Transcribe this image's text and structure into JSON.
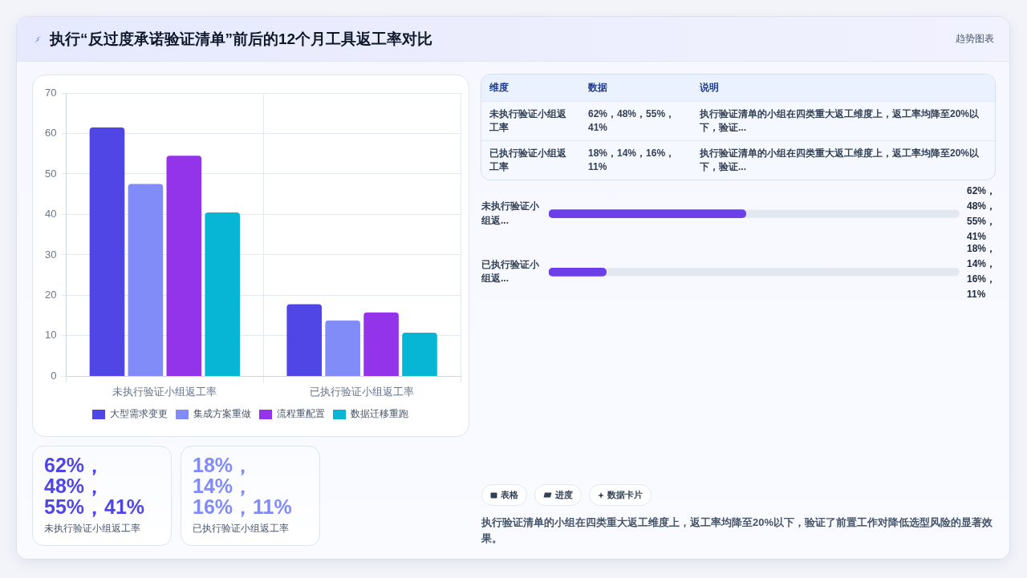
{
  "chart_data": [
    {
      "type": "other",
      "title": "执行“反过度承诺验证清单”前后的12个月工具返工率对比",
      "annotations": [
        "趋势图表"
      ]
    },
    {
      "type": "bar",
      "categories": [
        "未执行验证小组返工率",
        "已执行验证小组返工率"
      ],
      "series": [
        {
          "name": "大型需求变更",
          "color": "#4f46e5",
          "values": [
            61.5,
            17.8
          ]
        },
        {
          "name": "集成方案重做",
          "color": "#818cf8",
          "values": [
            47.5,
            13.8
          ]
        },
        {
          "name": "流程重配置",
          "color": "#9333ea",
          "values": [
            54.5,
            15.8
          ]
        },
        {
          "name": "数据迁移重跑",
          "color": "#06b6d4",
          "values": [
            40.5,
            10.8
          ]
        }
      ],
      "ylim": [
        0,
        70
      ],
      "yticks": [
        0,
        10,
        20,
        30,
        40,
        50,
        60,
        70
      ],
      "grid": true,
      "legend": "bottom"
    },
    {
      "type": "other",
      "annotations": [
        "维度",
        "数据",
        "说明",
        "未执行验证小组返工率",
        "62%，48%，55%，41%",
        "执行验证清单的小组在四类重大返工维度上，返工率均降至20%以下，验证...",
        "已执行验证小组返工率",
        "18%，14%，16%，11%",
        "执行验证清单的小组在四类重大返工维度上，返工率均降至20%以下，验证..."
      ]
    },
    {
      "type": "bar",
      "orientation": "horizontal",
      "categories": [
        "未执行验证小组返...",
        "已执行验证小组返..."
      ],
      "values": [
        48,
        14
      ],
      "xlim": [
        0,
        100
      ],
      "color": "#6d3fe8",
      "value_labels": [
        "62%，48%，55%，41%",
        "18%，14%，16%，11%"
      ]
    },
    {
      "type": "other",
      "annotations": [
        "62%，48%，55%，41%",
        "未执行验证小组返工率"
      ],
      "color": "#4f46e5"
    },
    {
      "type": "other",
      "annotations": [
        "18%，14%，16%，11%",
        "已执行验证小组返工率"
      ],
      "color": "#818cf8"
    },
    {
      "type": "other",
      "annotations": [
        "表格",
        "进度",
        "数据卡片",
        "执行验证清单的小组在四类重大返工维度上，返工率均降至20%以下，验证了前置工作对降低选型风险的显著效果。"
      ]
    }
  ]
}
